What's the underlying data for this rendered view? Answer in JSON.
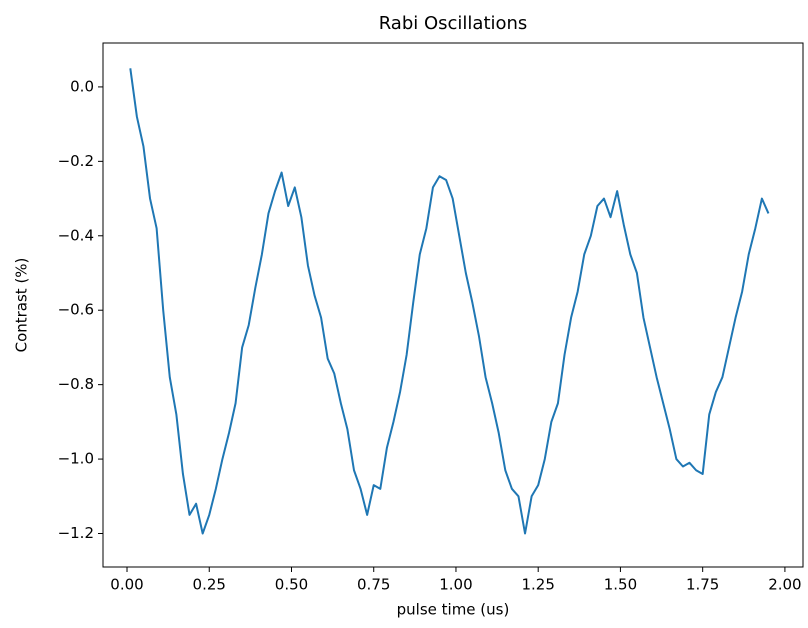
{
  "chart_data": {
    "type": "line",
    "title": "Rabi Oscillations",
    "x_label": "pulse time (us)",
    "y_label": "Contrast (%)",
    "x": [
      0.01,
      0.03,
      0.05,
      0.07,
      0.09,
      0.11,
      0.13,
      0.15,
      0.17,
      0.19,
      0.21,
      0.23,
      0.25,
      0.27,
      0.29,
      0.31,
      0.33,
      0.35,
      0.37,
      0.39,
      0.41,
      0.43,
      0.45,
      0.47,
      0.49,
      0.51,
      0.53,
      0.55,
      0.57,
      0.59,
      0.61,
      0.63,
      0.65,
      0.67,
      0.69,
      0.71,
      0.73,
      0.75,
      0.77,
      0.79,
      0.81,
      0.83,
      0.85,
      0.87,
      0.89,
      0.91,
      0.93,
      0.95,
      0.97,
      0.99,
      1.01,
      1.03,
      1.05,
      1.07,
      1.09,
      1.11,
      1.13,
      1.15,
      1.17,
      1.19,
      1.21,
      1.23,
      1.25,
      1.27,
      1.29,
      1.31,
      1.33,
      1.35,
      1.37,
      1.39,
      1.41,
      1.43,
      1.45,
      1.47,
      1.49,
      1.51,
      1.53,
      1.55,
      1.57,
      1.59,
      1.61,
      1.63,
      1.65,
      1.67,
      1.69,
      1.71,
      1.73,
      1.75,
      1.77,
      1.79,
      1.81,
      1.83,
      1.85,
      1.87,
      1.89,
      1.91,
      1.93,
      1.95
    ],
    "series": [
      {
        "name": "contrast",
        "color": "#1f77b4",
        "values": [
          0.05,
          -0.08,
          -0.16,
          -0.3,
          -0.38,
          -0.6,
          -0.78,
          -0.88,
          -1.04,
          -1.15,
          -1.12,
          -1.2,
          -1.15,
          -1.08,
          -1.0,
          -0.93,
          -0.85,
          -0.7,
          -0.64,
          -0.54,
          -0.45,
          -0.34,
          -0.28,
          -0.23,
          -0.32,
          -0.27,
          -0.35,
          -0.48,
          -0.56,
          -0.62,
          -0.73,
          -0.77,
          -0.85,
          -0.92,
          -1.03,
          -1.08,
          -1.15,
          -1.07,
          -1.08,
          -0.97,
          -0.9,
          -0.82,
          -0.72,
          -0.58,
          -0.45,
          -0.38,
          -0.27,
          -0.24,
          -0.25,
          -0.3,
          -0.4,
          -0.5,
          -0.58,
          -0.67,
          -0.78,
          -0.85,
          -0.93,
          -1.03,
          -1.08,
          -1.1,
          -1.2,
          -1.1,
          -1.07,
          -1.0,
          -0.9,
          -0.85,
          -0.72,
          -0.62,
          -0.55,
          -0.45,
          -0.4,
          -0.32,
          -0.3,
          -0.35,
          -0.28,
          -0.37,
          -0.45,
          -0.5,
          -0.62,
          -0.7,
          -0.78,
          -0.85,
          -0.92,
          -1.0,
          -1.02,
          -1.01,
          -1.03,
          -1.04,
          -0.88,
          -0.82,
          -0.78,
          -0.7,
          -0.62,
          -0.55,
          -0.45,
          -0.38,
          -0.3,
          -0.34
        ]
      }
    ],
    "xlim": [
      -0.073,
      2.055
    ],
    "ylim": [
      -1.29,
      0.118
    ],
    "xticks": [
      {
        "value": 0,
        "label": "0.00"
      },
      {
        "value": 0.25,
        "label": "0.25"
      },
      {
        "value": 0.5,
        "label": "0.50"
      },
      {
        "value": 0.75,
        "label": "0.75"
      },
      {
        "value": 1,
        "label": "1.00"
      },
      {
        "value": 1.25,
        "label": "1.25"
      },
      {
        "value": 1.5,
        "label": "1.50"
      },
      {
        "value": 1.75,
        "label": "1.75"
      },
      {
        "value": 2,
        "label": "2.00"
      }
    ],
    "yticks": [
      {
        "value": 0,
        "label": "0.0"
      },
      {
        "value": -0.2,
        "label": "−0.2"
      },
      {
        "value": -0.4,
        "label": "−0.4"
      },
      {
        "value": -0.6,
        "label": "−0.6"
      },
      {
        "value": -0.8,
        "label": "−0.8"
      },
      {
        "value": -1,
        "label": "−1.0"
      },
      {
        "value": -1.2,
        "label": "−1.2"
      }
    ],
    "grid": false
  }
}
